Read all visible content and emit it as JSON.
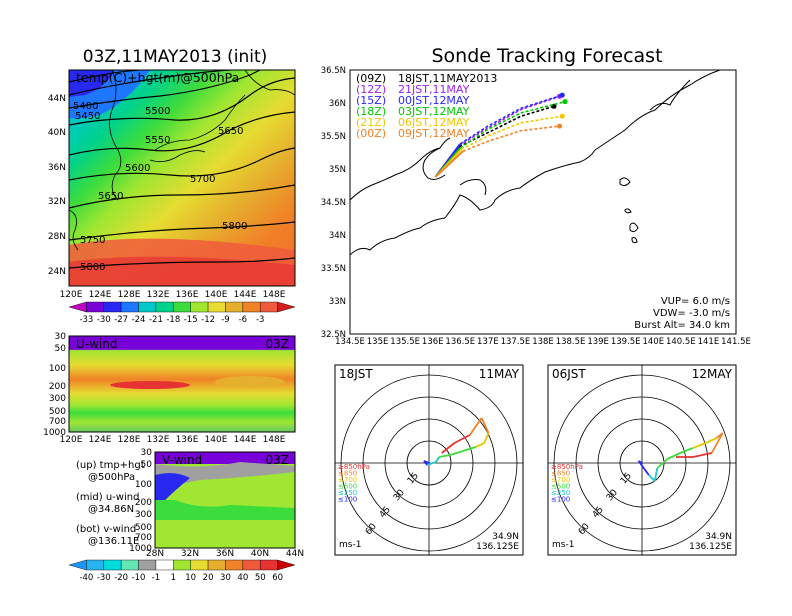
{
  "left_title": "03Z,11MAY2013 (init)",
  "right_title": "Sonde Tracking Forecast",
  "temp_map": {
    "label": "temp(C)+hgt(m)@500hPa",
    "lat_ticks": [
      "44N",
      "40N",
      "36N",
      "32N",
      "28N",
      "24N"
    ],
    "lon_ticks": [
      "120E",
      "124E",
      "128E",
      "132E",
      "136E",
      "140E",
      "144E",
      "148E"
    ],
    "contour_labels": [
      "5400",
      "5450",
      "5500",
      "5550",
      "5600",
      "5650",
      "5650",
      "5700",
      "5750",
      "5800",
      "5800"
    ],
    "colorbar_values": [
      "-33",
      "-30",
      "-27",
      "-24",
      "-21",
      "-18",
      "-15",
      "-12",
      "-9",
      "-6",
      "-3"
    ],
    "colorbar_colors": [
      "#c000c0",
      "#7800d8",
      "#2828f0",
      "#1e78ff",
      "#00c8c8",
      "#00d28c",
      "#3cdc3c",
      "#a0e632",
      "#e6dc32",
      "#e6af2d",
      "#f08228",
      "#f05a3c",
      "#d21e1e"
    ]
  },
  "u_wind": {
    "label": "U-wind",
    "time": "03Z",
    "p_ticks": [
      "30",
      "50",
      "100",
      "200",
      "300",
      "500",
      "700",
      "1000"
    ],
    "lon_ticks": [
      "120E",
      "124E",
      "128E",
      "132E",
      "136E",
      "140E",
      "144E",
      "148E"
    ]
  },
  "v_wind": {
    "label": "V-wind",
    "time": "03Z",
    "p_ticks": [
      "30",
      "50",
      "100",
      "200",
      "300",
      "500",
      "700",
      "1000"
    ],
    "lat_ticks": [
      "28N",
      "32N",
      "36N",
      "40N",
      "44N"
    ],
    "colorbar_values": [
      "-40",
      "-30",
      "-20",
      "-10",
      "-1",
      "1",
      "10",
      "20",
      "30",
      "40",
      "50",
      "60"
    ],
    "colorbar_colors": [
      "#1e96ff",
      "#28b4f0",
      "#00dcdc",
      "#64e6b4",
      "#a0a0a0",
      "#ffffff",
      "#a0e632",
      "#e6dc32",
      "#e6af2d",
      "#f08228",
      "#f05a3c",
      "#e63232",
      "#c80000"
    ]
  },
  "legend_notes": [
    {
      "line1": "(up) tmp+hgt",
      "line2": "@500hPa"
    },
    {
      "line1": "(mid) u-wind",
      "line2": "@34.86N"
    },
    {
      "line1": "(bot) v-wind",
      "line2": "@136.11E"
    }
  ],
  "tracking_map": {
    "lat_ticks": [
      "36.5N",
      "36N",
      "35.5N",
      "35N",
      "34.5N",
      "34N",
      "33.5N",
      "33N",
      "32.5N"
    ],
    "lon_ticks": [
      "134.5E",
      "135E",
      "135.5E",
      "136E",
      "136.5E",
      "137E",
      "137.5E",
      "138E",
      "138.5E",
      "139E",
      "139.5E",
      "140E",
      "140.5E",
      "141E",
      "141.5E"
    ],
    "launches": [
      {
        "utc": "(09Z)",
        "jst": "18JST,11MAY2013",
        "color": "#000000"
      },
      {
        "utc": "(12Z)",
        "jst": "21JST,11MAY",
        "color": "#a020f0"
      },
      {
        "utc": "(15Z)",
        "jst": "00JST,12MAY",
        "color": "#2828ff"
      },
      {
        "utc": "(18Z)",
        "jst": "03JST,12MAY",
        "color": "#00c800"
      },
      {
        "utc": "(21Z)",
        "jst": "06JST,12MAY",
        "color": "#f0c800"
      },
      {
        "utc": "(00Z)",
        "jst": "09JST,12MAY",
        "color": "#f08228"
      }
    ],
    "params": [
      "VUP= 6.0 m/s",
      "VDW= -3.0 m/s",
      "Burst Alt= 34.0 km"
    ]
  },
  "hodographs": [
    {
      "time": "18JST",
      "date": "11MAY",
      "lat": "34.9N",
      "lon": "136.125E",
      "unit": "ms-1",
      "rings": [
        "15",
        "30",
        "45",
        "60"
      ],
      "levels": [
        "≥850hPa",
        "≤850",
        "≤700",
        "≤500",
        "≤250",
        "≤100"
      ]
    },
    {
      "time": "06JST",
      "date": "12MAY",
      "lat": "34.9N",
      "lon": "136.125E",
      "unit": "ms-1",
      "rings": [
        "15",
        "30",
        "45",
        "60"
      ],
      "levels": [
        "≥850hPa",
        "≤850",
        "≤700",
        "≤500",
        "≤250",
        "≤100"
      ]
    }
  ],
  "chart_data": [
    {
      "type": "heatmap",
      "title": "temp(C)+hgt(m)@500hPa",
      "x_range": [
        "120E",
        "150E"
      ],
      "y_range": [
        "22N",
        "46N"
      ]
    },
    {
      "type": "heatmap",
      "title": "U-wind",
      "x_range": [
        "120E",
        "150E"
      ],
      "y_range": [
        "1000",
        "30"
      ]
    },
    {
      "type": "heatmap",
      "title": "V-wind",
      "x_range": [
        "28N",
        "44N"
      ],
      "y_range": [
        "1000",
        "30"
      ]
    },
    {
      "type": "line",
      "title": "Sonde Tracking Forecast",
      "xlim": [
        134.5,
        141.5
      ],
      "ylim": [
        32.5,
        36.5
      ],
      "series": [
        {
          "name": "(09Z)",
          "x": [
            136.48,
            137.0,
            137.6,
            138.2
          ],
          "y": [
            35.34,
            35.55,
            35.8,
            35.95
          ]
        },
        {
          "name": "(12Z)",
          "x": [
            136.48,
            137.0,
            137.6,
            138.3
          ],
          "y": [
            35.36,
            35.62,
            35.9,
            36.1
          ]
        },
        {
          "name": "(15Z)",
          "x": [
            136.5,
            137.0,
            137.6,
            138.35
          ],
          "y": [
            35.38,
            35.65,
            35.92,
            36.12
          ]
        },
        {
          "name": "(18Z)",
          "x": [
            136.5,
            137.0,
            137.6,
            138.4
          ],
          "y": [
            35.32,
            35.6,
            35.85,
            36.02
          ]
        },
        {
          "name": "(21Z)",
          "x": [
            136.52,
            137.0,
            137.6,
            138.35
          ],
          "y": [
            35.3,
            35.5,
            35.7,
            35.8
          ]
        },
        {
          "name": "(00Z)",
          "x": [
            136.55,
            137.0,
            137.6,
            138.3
          ],
          "y": [
            35.27,
            35.42,
            35.58,
            35.65
          ]
        }
      ]
    }
  ]
}
